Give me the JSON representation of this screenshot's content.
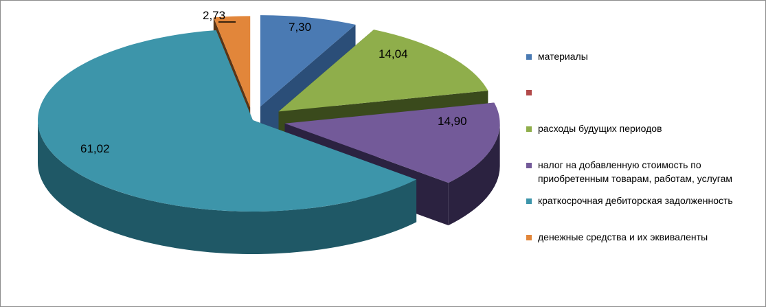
{
  "chart_data": {
    "type": "pie",
    "style": "3d-exploded",
    "slices": [
      {
        "label": "материалы",
        "value": 7.3,
        "value_text": "7,30",
        "color": "#4a7ab3",
        "side_color": "#2b4e78"
      },
      {
        "label": "",
        "value": 0,
        "value_text": "",
        "color": "#b24a4a",
        "side_color": "#7a2e2e"
      },
      {
        "label": "расходы будущих периодов",
        "value": 14.04,
        "value_text": "14,04",
        "color": "#8fae4b",
        "side_color": "#3a4a1c"
      },
      {
        "label": "налог на добавленную стоимость по приобретенным товарам, работам, услугам",
        "label_lines": [
          "налог на добавленную стоимость по",
          "приобретенным товарам, работам, услугам"
        ],
        "value": 14.9,
        "value_text": "14,90",
        "color": "#735a99",
        "side_color": "#2b2240"
      },
      {
        "label": "краткосрочная дебиторская задолженность",
        "value": 61.02,
        "value_text": "61,02",
        "color": "#3d95aa",
        "side_color": "#1f5866"
      },
      {
        "label": "денежные средства и их эквиваленты",
        "value": 2.73,
        "value_text": "2,73",
        "color": "#e2863a",
        "side_color": "#5c3515"
      }
    ],
    "legend_position": "right"
  }
}
